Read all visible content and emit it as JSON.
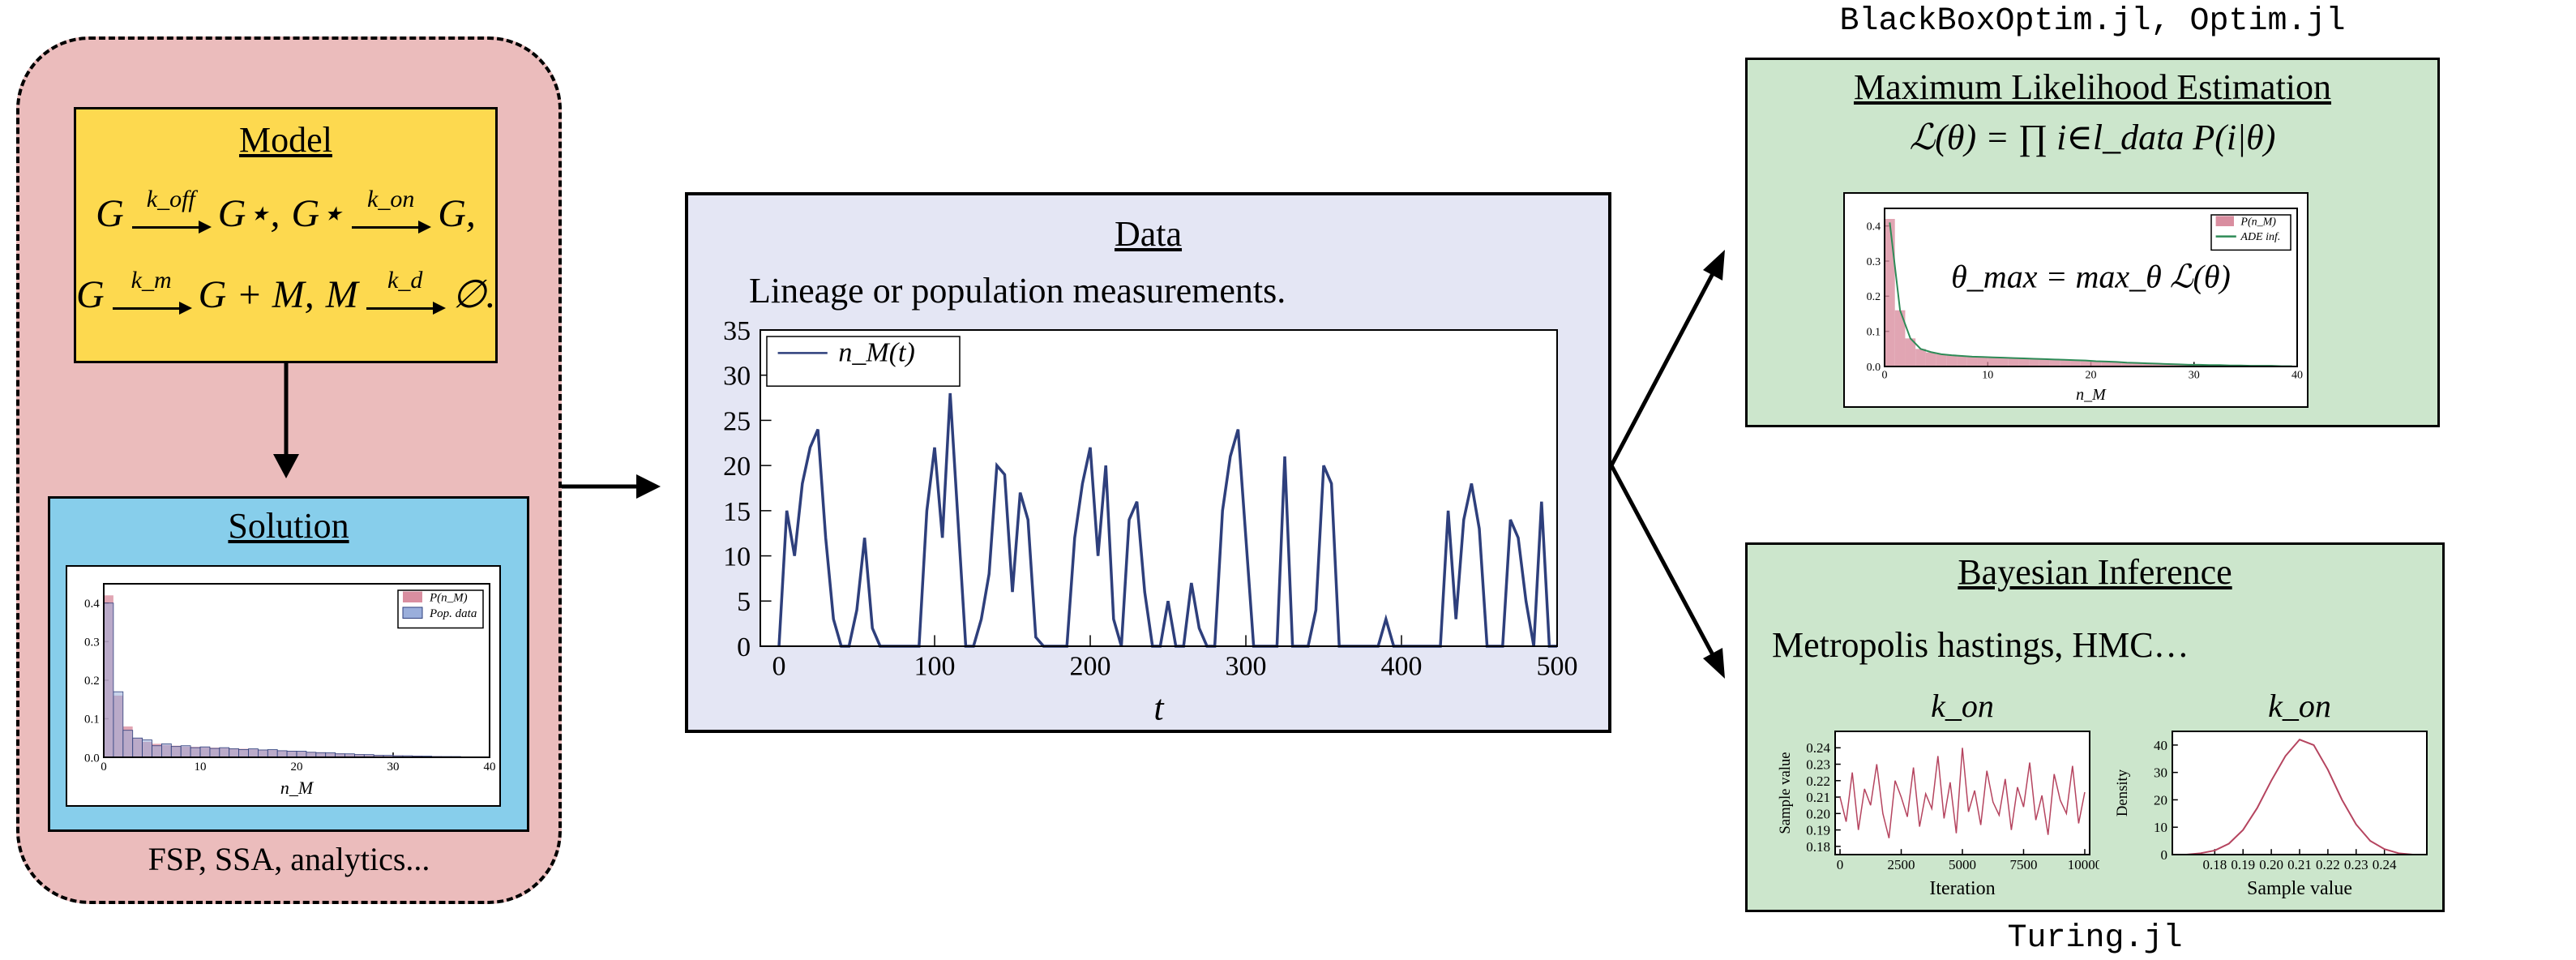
{
  "model": {
    "title": "Model",
    "reactions": [
      {
        "from": "G",
        "rate": "k_off",
        "to": "G⋆,"
      },
      {
        "from": "G⋆",
        "rate": "k_on",
        "to": "G,"
      },
      {
        "from": "G",
        "rate": "k_m",
        "to": "G + M,"
      },
      {
        "from": "M",
        "rate": "k_d",
        "to": "∅."
      }
    ]
  },
  "solution": {
    "title": "Solution",
    "footer": "FSP, SSA, analytics...",
    "chart": {
      "type": "histogram",
      "bins": [
        0,
        1,
        2,
        3,
        4,
        5,
        6,
        7,
        8,
        9,
        10,
        11,
        12,
        13,
        14,
        15,
        16,
        17,
        18,
        19,
        20,
        21,
        22,
        23,
        24,
        25,
        26,
        27,
        28,
        29,
        30,
        31,
        32,
        33,
        34,
        35,
        36,
        37,
        38,
        39,
        40
      ],
      "series": [
        {
          "name": "P(n_M)",
          "color": "#d98ea0",
          "values": [
            0.42,
            0.16,
            0.08,
            0.05,
            0.04,
            0.035,
            0.032,
            0.03,
            0.028,
            0.027,
            0.026,
            0.025,
            0.024,
            0.023,
            0.022,
            0.021,
            0.02,
            0.019,
            0.018,
            0.017,
            0.015,
            0.014,
            0.013,
            0.011,
            0.01,
            0.009,
            0.008,
            0.007,
            0.006,
            0.005,
            0.005,
            0.004,
            0.004,
            0.003,
            0.003,
            0.002,
            0.002,
            0.002,
            0.001,
            0.001
          ]
        },
        {
          "name": "Pop. data",
          "color": "#9aaedb",
          "values": [
            0.4,
            0.17,
            0.07,
            0.05,
            0.045,
            0.03,
            0.035,
            0.028,
            0.03,
            0.025,
            0.027,
            0.023,
            0.025,
            0.022,
            0.02,
            0.022,
            0.019,
            0.02,
            0.017,
            0.016,
            0.016,
            0.013,
            0.012,
            0.012,
            0.009,
            0.009,
            0.007,
            0.007,
            0.005,
            0.005,
            0.004,
            0.004,
            0.003,
            0.003,
            0.002,
            0.002,
            0.002,
            0.001,
            0.001,
            0.001
          ]
        }
      ],
      "xlim": [
        0,
        40
      ],
      "ylim": [
        0,
        0.45
      ],
      "xticks": [
        0,
        10,
        20,
        30,
        40
      ],
      "yticks": [
        {
          "value": 0,
          "label": "0.0"
        },
        0.1,
        0.2,
        0.3,
        0.4
      ],
      "xlabel": "n_M",
      "legend": "upper right"
    }
  },
  "data": {
    "title": "Data",
    "subtitle": "Lineage or population measurements.",
    "chart": {
      "type": "line",
      "x": [
        0,
        5,
        10,
        15,
        20,
        25,
        30,
        35,
        40,
        45,
        50,
        55,
        60,
        65,
        70,
        75,
        80,
        85,
        90,
        95,
        100,
        105,
        110,
        115,
        120,
        125,
        130,
        135,
        140,
        145,
        150,
        155,
        160,
        165,
        170,
        175,
        180,
        185,
        190,
        195,
        200,
        205,
        210,
        215,
        220,
        225,
        230,
        235,
        240,
        245,
        250,
        255,
        260,
        265,
        270,
        275,
        280,
        285,
        290,
        295,
        300,
        305,
        310,
        315,
        320,
        325,
        330,
        335,
        340,
        345,
        350,
        355,
        360,
        365,
        370,
        375,
        380,
        385,
        390,
        395,
        400,
        405,
        410,
        415,
        420,
        425,
        430,
        435,
        440,
        445,
        450,
        455,
        460,
        465,
        470,
        475,
        480,
        485,
        490,
        495,
        500
      ],
      "series": [
        {
          "name": "n_M(t)",
          "color": "#2e3f7c",
          "values": [
            0,
            15,
            10,
            18,
            22,
            24,
            12,
            3,
            0,
            0,
            4,
            12,
            2,
            0,
            0,
            0,
            0,
            0,
            0,
            15,
            22,
            12,
            28,
            14,
            0,
            0,
            3,
            8,
            20,
            19,
            6,
            17,
            14,
            1,
            0,
            0,
            0,
            0,
            12,
            18,
            22,
            10,
            20,
            3,
            0,
            14,
            16,
            6,
            0,
            0,
            5,
            0,
            0,
            7,
            2,
            0,
            0,
            15,
            21,
            24,
            12,
            0,
            0,
            0,
            0,
            21,
            0,
            0,
            0,
            4,
            20,
            18,
            0,
            0,
            0,
            0,
            0,
            0,
            3,
            0,
            0,
            0,
            0,
            0,
            0,
            0,
            15,
            3,
            14,
            18,
            13,
            0,
            0,
            0,
            14,
            12,
            5,
            0,
            16,
            0,
            0
          ]
        }
      ],
      "xlim": [
        -12,
        500
      ],
      "ylim": [
        0,
        35
      ],
      "xticks": [
        0,
        100,
        200,
        300,
        400,
        500
      ],
      "yticks": [
        0,
        5,
        10,
        15,
        20,
        25,
        30,
        35
      ],
      "xlabel": "t",
      "legend": "upper left"
    }
  },
  "mle": {
    "header": "BlackBoxOptim.jl, Optim.jl",
    "title": "Maximum Likelihood Estimation",
    "formula": "ℒ(θ) = ∏ i∈l_data P(i|θ)",
    "chart": {
      "type": "histogram",
      "bins": [
        0,
        1,
        2,
        3,
        4,
        5,
        6,
        7,
        8,
        9,
        10,
        11,
        12,
        13,
        14,
        15,
        16,
        17,
        18,
        19,
        20,
        21,
        22,
        23,
        24,
        25,
        26,
        27,
        28,
        29,
        30,
        31,
        32,
        33,
        34,
        35,
        36,
        37,
        38,
        39,
        40
      ],
      "series": [
        {
          "name": "P(n_M)",
          "color": "#d98ea0",
          "values": [
            0.42,
            0.16,
            0.08,
            0.05,
            0.04,
            0.035,
            0.032,
            0.03,
            0.028,
            0.027,
            0.026,
            0.025,
            0.024,
            0.023,
            0.022,
            0.021,
            0.02,
            0.019,
            0.018,
            0.017,
            0.015,
            0.014,
            0.013,
            0.011,
            0.01,
            0.009,
            0.008,
            0.007,
            0.006,
            0.005,
            0.005,
            0.004,
            0.004,
            0.003,
            0.003,
            0.002,
            0.002,
            0.002,
            0.001,
            0.001
          ]
        },
        {
          "name": "ADE inf.",
          "color": "#2e8b57",
          "kind": "line",
          "values": [
            0.41,
            0.16,
            0.08,
            0.05,
            0.041,
            0.035,
            0.032,
            0.03,
            0.028,
            0.027,
            0.026,
            0.025,
            0.024,
            0.023,
            0.022,
            0.021,
            0.02,
            0.019,
            0.018,
            0.017,
            0.015,
            0.014,
            0.013,
            0.011,
            0.01,
            0.009,
            0.008,
            0.007,
            0.006,
            0.005,
            0.005,
            0.004,
            0.004,
            0.003,
            0.003,
            0.002,
            0.002,
            0.002,
            0.001,
            0.001
          ]
        }
      ],
      "xlim": [
        0,
        40
      ],
      "ylim": [
        0,
        0.45
      ],
      "xticks": [
        0,
        10,
        20,
        30,
        40
      ],
      "yticks": [
        {
          "value": 0,
          "label": "0.0"
        },
        0.1,
        0.2,
        0.3,
        0.4
      ],
      "xlabel": "n_M",
      "legend": "upper right",
      "annotation": "θ_max = max_θ ℒ(θ)"
    }
  },
  "bayes": {
    "title": "Bayesian Inference",
    "methods": "Metropolis hastings, HMC…",
    "footer": "Turing.jl",
    "charts": [
      {
        "type": "line",
        "title": "k_on",
        "x": [
          0,
          250,
          500,
          750,
          1000,
          1250,
          1500,
          1750,
          2000,
          2250,
          2500,
          2750,
          3000,
          3250,
          3500,
          3750,
          4000,
          4250,
          4500,
          4750,
          5000,
          5250,
          5500,
          5750,
          6000,
          6250,
          6500,
          6750,
          7000,
          7250,
          7500,
          7750,
          8000,
          8250,
          8500,
          8750,
          9000,
          9250,
          9500,
          9750,
          10000
        ],
        "series": [
          {
            "name": "k_on",
            "color": "#b5445f",
            "values": [
              0.21,
              0.195,
              0.225,
              0.19,
              0.215,
              0.205,
              0.23,
              0.2,
              0.185,
              0.22,
              0.21,
              0.198,
              0.228,
              0.192,
              0.212,
              0.203,
              0.235,
              0.197,
              0.219,
              0.188,
              0.24,
              0.201,
              0.214,
              0.193,
              0.226,
              0.207,
              0.199,
              0.221,
              0.19,
              0.216,
              0.204,
              0.231,
              0.196,
              0.211,
              0.187,
              0.224,
              0.208,
              0.2,
              0.229,
              0.194,
              0.213
            ]
          }
        ],
        "xlim": [
          -200,
          10200
        ],
        "ylim": [
          0.175,
          0.25
        ],
        "xticks": [
          0,
          2500,
          5000,
          7500,
          10000
        ],
        "yticks": [
          0.18,
          0.19,
          {
            "value": 0.2,
            "label": "0.20"
          },
          0.21,
          0.22,
          0.23,
          0.24
        ],
        "xlabel": "Iteration",
        "ylabel": "Sample value"
      },
      {
        "type": "line",
        "title": "k_on",
        "x": [
          0.17,
          0.175,
          0.18,
          0.185,
          0.19,
          0.195,
          0.2,
          0.205,
          0.21,
          0.215,
          0.22,
          0.225,
          0.23,
          0.235,
          0.24,
          0.245,
          0.25
        ],
        "series": [
          {
            "name": "k_on",
            "color": "#b5445f",
            "values": [
              0,
              0.5,
              1.5,
              4,
              9,
              17,
              27,
              36,
              42,
              40,
              31,
              20,
              11,
              5,
              2,
              0.5,
              0
            ]
          }
        ],
        "xlim": [
          0.165,
          0.255
        ],
        "ylim": [
          0,
          45
        ],
        "xticks": [
          0.18,
          0.19,
          {
            "value": 0.2,
            "label": "0.20"
          },
          0.21,
          0.22,
          0.23,
          0.24
        ],
        "yticks": [
          0,
          10,
          20,
          30,
          40
        ],
        "xlabel": "Sample value",
        "ylabel": "Density"
      }
    ]
  }
}
